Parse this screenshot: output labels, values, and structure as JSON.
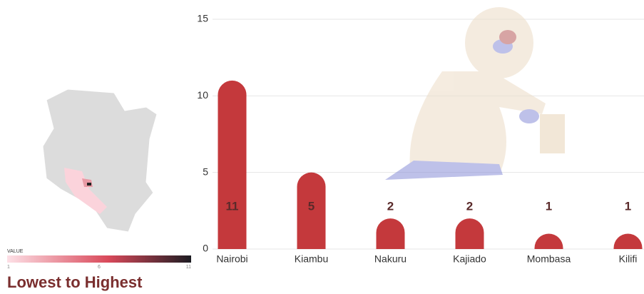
{
  "chart_data": {
    "type": "bar",
    "categories": [
      "Nairobi",
      "Kiambu",
      "Nakuru",
      "Kajiado",
      "Mombasa",
      "Kilifi"
    ],
    "values": [
      11,
      5,
      2,
      2,
      1,
      1
    ],
    "color": "#c4393c",
    "ylim": [
      0,
      15
    ],
    "yticks": [
      0,
      5,
      10,
      15
    ],
    "grid": true,
    "legend": {
      "title": "VALUE",
      "subtitle": "Lowest to Highest",
      "ticks": [
        1,
        6,
        11
      ],
      "colors": [
        "#fde0e6",
        "#d9495a",
        "#1c1c22"
      ]
    }
  }
}
